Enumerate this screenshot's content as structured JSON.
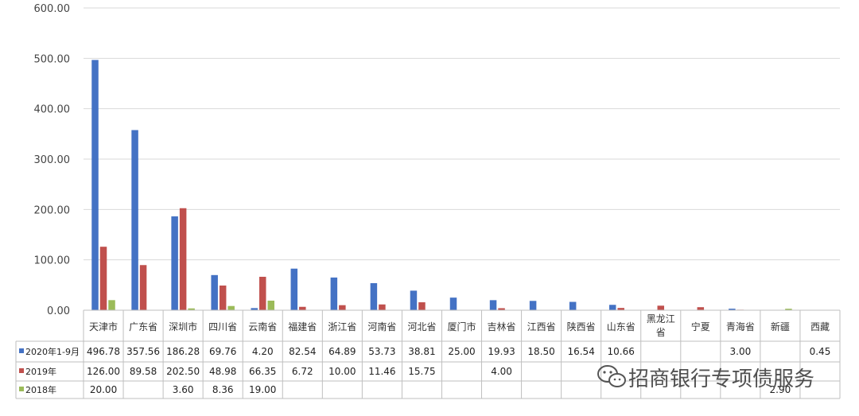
{
  "chart_data": {
    "type": "bar",
    "title": "",
    "xlabel": "",
    "ylabel": "",
    "ylim": [
      0,
      600
    ],
    "yticks": [
      "0.00",
      "100.00",
      "200.00",
      "300.00",
      "400.00",
      "500.00",
      "600.00"
    ],
    "grid": true,
    "legend_placement": "data-table-left",
    "categories": [
      "天津市",
      "广东省",
      "深圳市",
      "四川省",
      "云南省",
      "福建省",
      "浙江省",
      "河南省",
      "河北省",
      "厦门市",
      "吉林省",
      "江西省",
      "陕西省",
      "山东省",
      "黑龙江省",
      "宁夏",
      "青海省",
      "新疆",
      "西藏"
    ],
    "category_display": [
      "天津市",
      "广东省",
      "深圳市",
      "四川省",
      "云南省",
      "福建省",
      "浙江省",
      "河南省",
      "河北省",
      "厦门市",
      "吉林省",
      "江西省",
      "陕西省",
      "山东省",
      "黑龙江|省",
      "宁夏",
      "青海省",
      "新疆",
      "西藏"
    ],
    "series": [
      {
        "name": "2020年1-9月",
        "color": "#4472C4",
        "values": [
          496.78,
          357.56,
          186.28,
          69.76,
          4.2,
          82.54,
          64.89,
          53.73,
          38.81,
          25.0,
          19.93,
          18.5,
          16.54,
          10.66,
          null,
          null,
          3.0,
          null,
          0.45
        ],
        "labels": [
          "496.78",
          "357.56",
          "186.28",
          "69.76",
          "4.20",
          "82.54",
          "64.89",
          "53.73",
          "38.81",
          "25.00",
          "19.93",
          "18.50",
          "16.54",
          "10.66",
          "",
          "",
          "3.00",
          "",
          "0.45"
        ]
      },
      {
        "name": "2019年",
        "color": "#C0504D",
        "values": [
          126.0,
          89.58,
          202.5,
          48.98,
          66.35,
          6.72,
          10.0,
          11.46,
          15.75,
          null,
          4.0,
          null,
          null,
          4.5,
          9.0,
          6.0,
          1.0,
          null,
          null
        ],
        "labels": [
          "126.00",
          "89.58",
          "202.50",
          "48.98",
          "66.35",
          "6.72",
          "10.00",
          "11.46",
          "15.75",
          "",
          "4.00",
          "",
          "",
          "",
          "",
          "",
          "",
          "",
          ""
        ]
      },
      {
        "name": "2018年",
        "color": "#9BBB59",
        "values": [
          20.0,
          null,
          3.6,
          8.36,
          19.0,
          null,
          null,
          null,
          null,
          null,
          null,
          null,
          null,
          null,
          null,
          null,
          null,
          2.9,
          null
        ],
        "labels": [
          "20.00",
          "",
          "3.60",
          "8.36",
          "19.00",
          "",
          "",
          "",
          "",
          "",
          "",
          "",
          "",
          "",
          "",
          "",
          "",
          "2.90",
          ""
        ]
      }
    ]
  },
  "watermark": {
    "text": "招商银行专项债服务",
    "icon": "wechat-icon"
  }
}
